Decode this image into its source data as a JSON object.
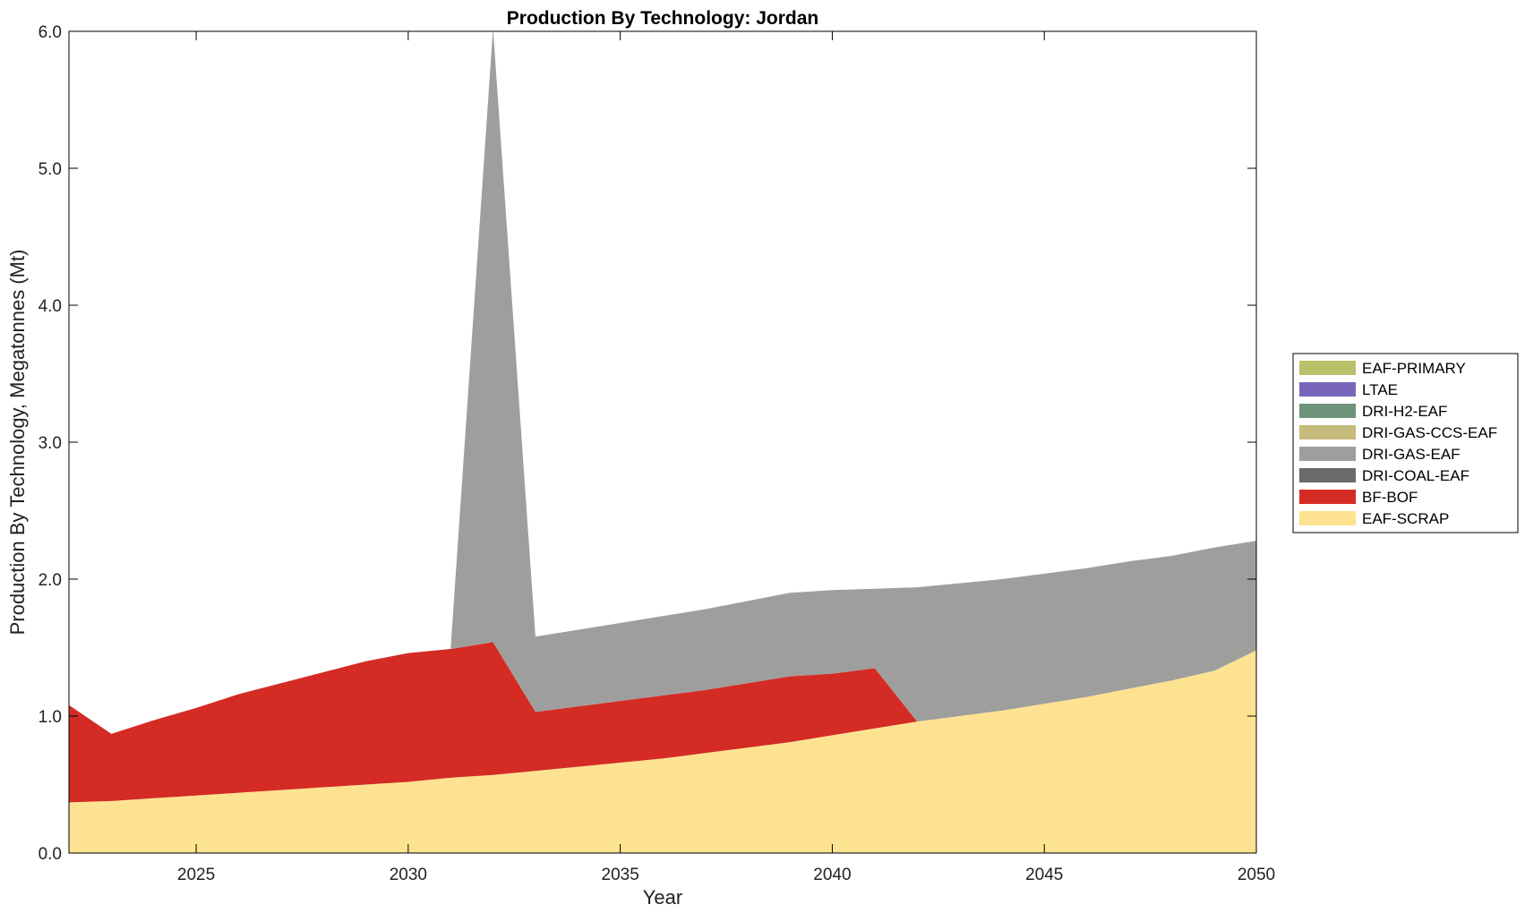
{
  "chart_data": {
    "type": "area",
    "stacked": true,
    "title": "Production By Technology: Jordan",
    "xlabel": "Year",
    "ylabel": "Production By Technology, Megatonnes (Mt)",
    "xlim": [
      2022,
      2050
    ],
    "ylim": [
      0,
      6.0
    ],
    "xticks": [
      "2025",
      "2030",
      "2035",
      "2040",
      "2045",
      "2050"
    ],
    "yticks": [
      "0.0",
      "1.0",
      "2.0",
      "3.0",
      "4.0",
      "5.0",
      "6.0"
    ],
    "grid": false,
    "legend_position": "right",
    "x": [
      2022,
      2023,
      2024,
      2025,
      2026,
      2027,
      2028,
      2029,
      2030,
      2031,
      2032,
      2033,
      2034,
      2035,
      2036,
      2037,
      2038,
      2039,
      2040,
      2041,
      2042,
      2043,
      2044,
      2045,
      2046,
      2047,
      2048,
      2049,
      2050
    ],
    "series": [
      {
        "name": "EAF-SCRAP",
        "color": "#fde391",
        "values": [
          0.37,
          0.38,
          0.4,
          0.42,
          0.44,
          0.46,
          0.48,
          0.5,
          0.52,
          0.55,
          0.57,
          0.6,
          0.63,
          0.66,
          0.69,
          0.73,
          0.77,
          0.81,
          0.86,
          0.91,
          0.96,
          1.0,
          1.04,
          1.09,
          1.14,
          1.2,
          1.26,
          1.33,
          1.48
        ]
      },
      {
        "name": "BF-BOF",
        "color": "#d42b24",
        "values": [
          0.71,
          0.49,
          0.57,
          0.64,
          0.72,
          0.78,
          0.84,
          0.9,
          0.94,
          0.94,
          0.97,
          0.43,
          0.44,
          0.45,
          0.46,
          0.46,
          0.47,
          0.48,
          0.45,
          0.44,
          0.0,
          0,
          0,
          0,
          0,
          0,
          0,
          0,
          0
        ]
      },
      {
        "name": "DRI-COAL-EAF",
        "color": "#6a6a6a",
        "values": [
          0,
          0,
          0,
          0,
          0,
          0,
          0,
          0,
          0,
          0,
          0,
          0,
          0,
          0,
          0,
          0,
          0,
          0,
          0,
          0,
          0,
          0,
          0,
          0,
          0,
          0,
          0,
          0,
          0
        ]
      },
      {
        "name": "DRI-GAS-EAF",
        "color": "#9e9e9c",
        "values": [
          0,
          0,
          0,
          0,
          0,
          0,
          0,
          0,
          0,
          0.0,
          4.48,
          0.55,
          0.56,
          0.57,
          0.58,
          0.59,
          0.6,
          0.61,
          0.61,
          0.58,
          0.98,
          0.97,
          0.96,
          0.95,
          0.94,
          0.93,
          0.91,
          0.9,
          0.8
        ]
      },
      {
        "name": "DRI-GAS-CCS-EAF",
        "color": "#c5bb7c",
        "values": [
          0,
          0,
          0,
          0,
          0,
          0,
          0,
          0,
          0,
          0,
          0,
          0,
          0,
          0,
          0,
          0,
          0,
          0,
          0,
          0,
          0,
          0,
          0,
          0,
          0,
          0,
          0,
          0,
          0
        ]
      },
      {
        "name": "DRI-H2-EAF",
        "color": "#6e937a",
        "values": [
          0,
          0,
          0,
          0,
          0,
          0,
          0,
          0,
          0,
          0,
          0,
          0,
          0,
          0,
          0,
          0,
          0,
          0,
          0,
          0,
          0,
          0,
          0,
          0,
          0,
          0,
          0,
          0,
          0
        ]
      },
      {
        "name": "LTAE",
        "color": "#7766bb",
        "values": [
          0,
          0,
          0,
          0,
          0,
          0,
          0,
          0,
          0,
          0,
          0,
          0,
          0,
          0,
          0,
          0,
          0,
          0,
          0,
          0,
          0,
          0,
          0,
          0,
          0,
          0,
          0,
          0,
          0
        ]
      },
      {
        "name": "EAF-PRIMARY",
        "color": "#b9c26a",
        "values": [
          0,
          0,
          0,
          0,
          0,
          0,
          0,
          0,
          0,
          0,
          0,
          0,
          0,
          0,
          0,
          0,
          0,
          0,
          0,
          0,
          0,
          0,
          0,
          0,
          0,
          0,
          0,
          0,
          0
        ]
      }
    ],
    "legend_order": [
      "EAF-PRIMARY",
      "LTAE",
      "DRI-H2-EAF",
      "DRI-GAS-CCS-EAF",
      "DRI-GAS-EAF",
      "DRI-COAL-EAF",
      "BF-BOF",
      "EAF-SCRAP"
    ]
  }
}
